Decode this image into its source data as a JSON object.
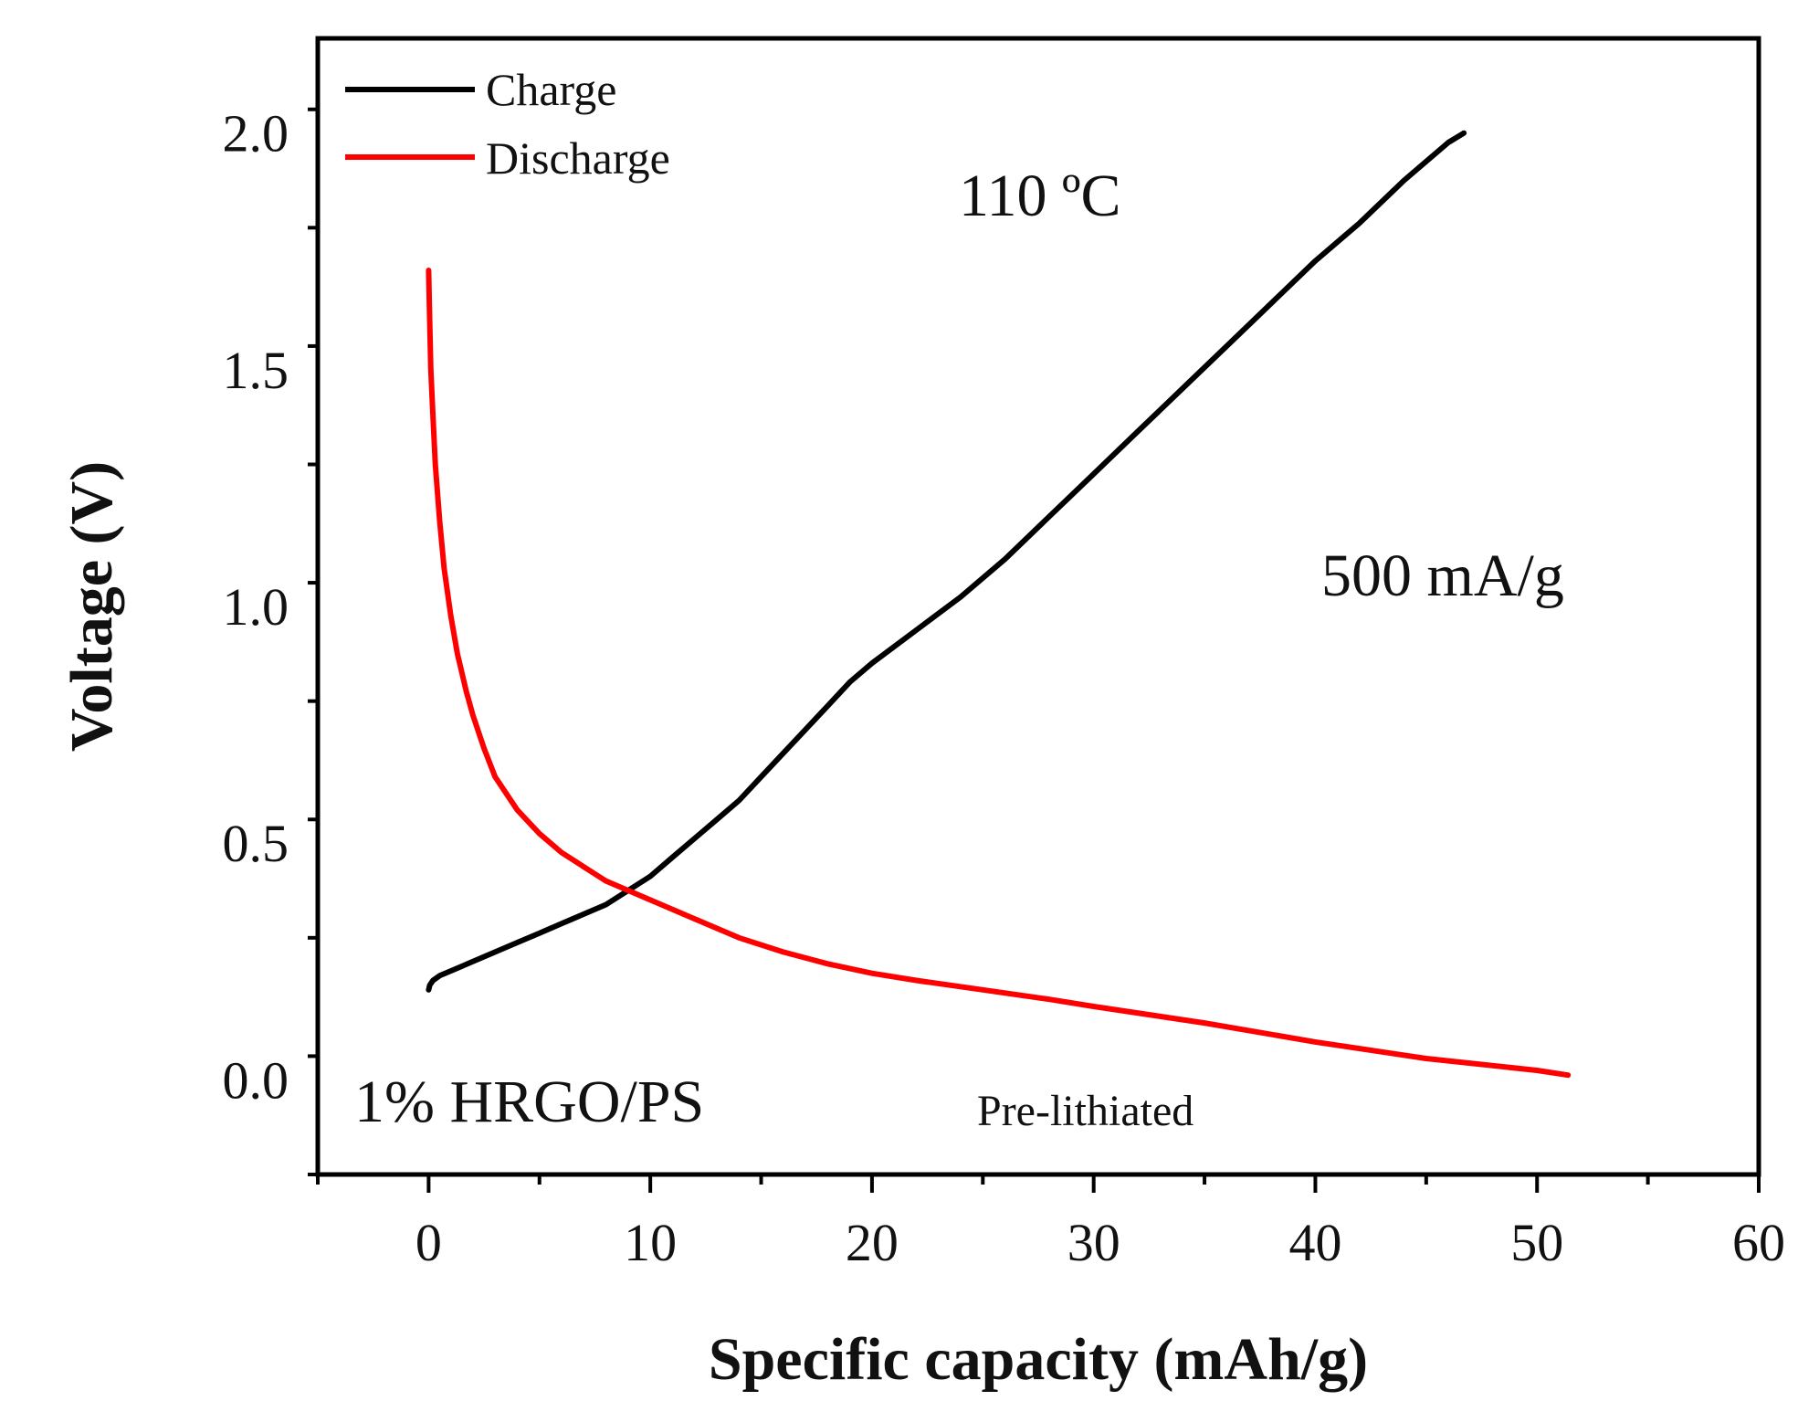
{
  "chart_data": {
    "type": "line",
    "xlabel": "Specific capacity (mAh/g)",
    "ylabel": "Voltage (V)",
    "xlim": [
      -5,
      60
    ],
    "ylim": [
      -0.2,
      2.2
    ],
    "x_ticks": [
      0,
      10,
      20,
      30,
      40,
      50,
      60
    ],
    "x_tick_labels": [
      "0",
      "10",
      "20",
      "30",
      "40",
      "50",
      "60"
    ],
    "y_ticks": [
      0.0,
      0.5,
      1.0,
      1.5,
      2.0
    ],
    "y_tick_labels": [
      "0.0",
      "0.5",
      "1.0",
      "1.5",
      "2.0"
    ],
    "x_minor_step": 5,
    "y_minor_step": 0.25,
    "grid": false,
    "legend_position": "top-left",
    "series": [
      {
        "name": "Charge",
        "color": "#000000",
        "x": [
          0,
          0.05,
          0.2,
          0.5,
          1,
          2,
          3,
          4,
          5,
          6,
          7,
          8,
          9,
          10,
          11,
          12,
          13,
          14,
          15,
          16,
          17,
          18,
          19,
          20,
          22,
          24,
          26,
          28,
          30,
          32,
          34,
          36,
          38,
          40,
          42,
          44,
          46,
          46.7
        ],
        "y": [
          0.19,
          0.2,
          0.21,
          0.22,
          0.23,
          0.25,
          0.27,
          0.29,
          0.31,
          0.33,
          0.35,
          0.37,
          0.4,
          0.43,
          0.47,
          0.51,
          0.55,
          0.59,
          0.64,
          0.69,
          0.74,
          0.79,
          0.84,
          0.88,
          0.95,
          1.02,
          1.1,
          1.19,
          1.28,
          1.37,
          1.46,
          1.55,
          1.64,
          1.73,
          1.81,
          1.9,
          1.98,
          2.0
        ]
      },
      {
        "name": "Discharge",
        "color": "#ff0000",
        "x": [
          0,
          0.05,
          0.1,
          0.2,
          0.3,
          0.5,
          0.7,
          1,
          1.3,
          1.7,
          2,
          2.5,
          3,
          4,
          5,
          6,
          7,
          8,
          9,
          10,
          12,
          14,
          16,
          18,
          20,
          22,
          25,
          28,
          30,
          35,
          40,
          45,
          50,
          51.4
        ],
        "y": [
          1.71,
          1.6,
          1.5,
          1.4,
          1.3,
          1.18,
          1.08,
          0.98,
          0.9,
          0.82,
          0.77,
          0.7,
          0.64,
          0.57,
          0.52,
          0.48,
          0.45,
          0.42,
          0.4,
          0.38,
          0.34,
          0.3,
          0.27,
          0.245,
          0.225,
          0.21,
          0.19,
          0.17,
          0.155,
          0.12,
          0.08,
          0.045,
          0.02,
          0.01
        ]
      }
    ],
    "annotations": {
      "temperature": "110 ºC",
      "current_density": "500 mA/g",
      "sample": "1% HRGO/PS",
      "condition": "Pre-lithiated"
    }
  }
}
